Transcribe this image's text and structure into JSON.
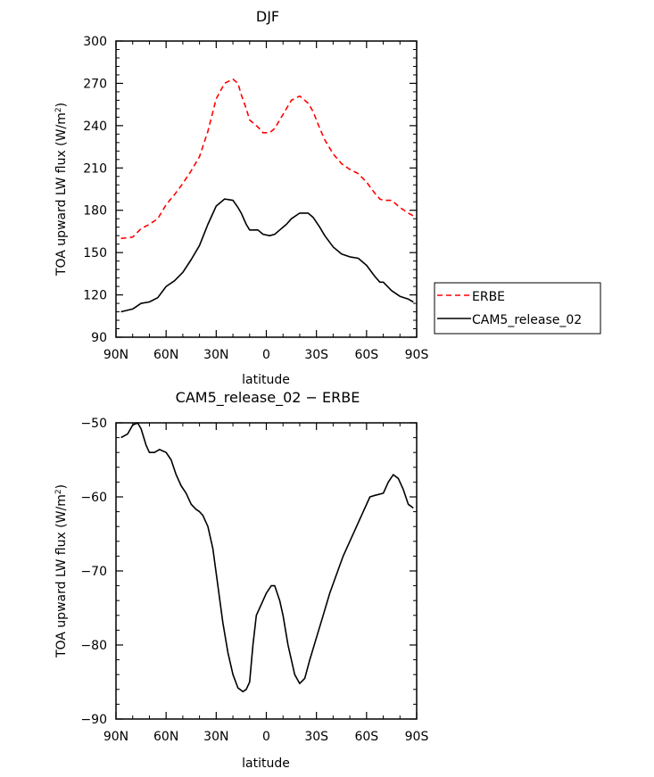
{
  "chart_data": [
    {
      "type": "line",
      "title": "DJF",
      "xlabel": "latitude",
      "ylabel": "TOA upward LW flux (W/m",
      "ylabel_sup": "2",
      "ylabel_close": ")",
      "xlim": [
        -90,
        90
      ],
      "ylim": [
        90,
        300
      ],
      "x_ticks": [
        -90,
        -60,
        -30,
        0,
        30,
        60,
        90
      ],
      "x_tick_labels": [
        "90N",
        "60N",
        "30N",
        "0",
        "30S",
        "60S",
        "90S"
      ],
      "y_ticks": [
        90,
        120,
        150,
        180,
        210,
        240,
        270,
        300
      ],
      "y_tick_labels": [
        "90",
        "120",
        "150",
        "180",
        "210",
        "240",
        "270",
        "300"
      ],
      "grid": false,
      "legend_position": "right",
      "x": [
        -87,
        -80,
        -75,
        -70,
        -65,
        -60,
        -55,
        -50,
        -45,
        -40,
        -35,
        -30,
        -25,
        -20,
        -17,
        -15,
        -12,
        -10,
        -5,
        -2,
        2,
        5,
        8,
        12,
        15,
        20,
        25,
        28,
        32,
        35,
        40,
        45,
        50,
        55,
        60,
        65,
        68,
        70,
        75,
        80,
        85,
        88
      ],
      "series": [
        {
          "name": "ERBE",
          "color": "#ff0000",
          "dash": "dashed",
          "values": [
            160,
            161,
            167,
            170,
            174,
            184,
            191,
            199,
            208,
            218,
            236,
            259,
            270,
            273,
            270,
            262,
            252,
            244,
            239,
            235,
            235,
            238,
            244,
            252,
            258,
            261,
            256,
            250,
            238,
            230,
            220,
            213,
            209,
            206,
            200,
            192,
            188,
            187,
            187,
            182,
            178,
            176
          ],
          "x_override": null
        },
        {
          "name": "CAM5_release_02",
          "color": "#000000",
          "dash": "solid",
          "values": [
            108,
            110,
            114,
            115,
            118,
            126,
            130,
            136,
            145,
            155,
            170,
            183,
            188,
            187,
            182,
            178,
            170,
            166,
            166,
            163,
            162,
            163,
            166,
            170,
            174,
            178,
            178,
            175,
            168,
            162,
            154,
            149,
            147,
            146,
            141,
            133,
            129,
            129,
            123,
            119,
            117,
            115
          ]
        }
      ]
    },
    {
      "type": "line",
      "title": "CAM5_release_02 − ERBE",
      "xlabel": "latitude",
      "ylabel": "TOA upward LW flux (W/m",
      "ylabel_sup": "2",
      "ylabel_close": ")",
      "xlim": [
        -90,
        90
      ],
      "ylim": [
        -90,
        -50
      ],
      "x_ticks": [
        -90,
        -60,
        -30,
        0,
        30,
        60,
        90
      ],
      "x_tick_labels": [
        "90N",
        "60N",
        "30N",
        "0",
        "30S",
        "60S",
        "90S"
      ],
      "y_ticks": [
        -90,
        -80,
        -70,
        -60,
        -50
      ],
      "y_tick_labels": [
        "−90",
        "−80",
        "−70",
        "−60",
        "−50"
      ],
      "grid": false,
      "legend_position": "none",
      "x": [
        -87,
        -83,
        -80,
        -77,
        -75,
        -72,
        -70,
        -67,
        -64,
        -60,
        -57,
        -54,
        -51,
        -48,
        -45,
        -42,
        -40,
        -38,
        -35,
        -32,
        -29,
        -26,
        -23,
        -20,
        -17,
        -14,
        -12,
        -10,
        -8,
        -6,
        -3,
        0,
        3,
        5,
        8,
        10,
        13,
        17,
        20,
        23,
        26,
        30,
        34,
        38,
        42,
        46,
        50,
        54,
        58,
        62,
        65,
        70,
        73,
        76,
        79,
        82,
        85,
        88
      ],
      "series": [
        {
          "name": "",
          "color": "#000000",
          "dash": "solid",
          "values": [
            -52,
            -51.5,
            -50.3,
            -50,
            -50.8,
            -53,
            -54,
            -54,
            -53.6,
            -54,
            -55,
            -57,
            -58.5,
            -59.5,
            -61,
            -61.7,
            -62,
            -62.5,
            -64,
            -67,
            -72,
            -77,
            -81,
            -84,
            -85.8,
            -86.3,
            -86,
            -85,
            -80,
            -76,
            -74.5,
            -73,
            -72,
            -72,
            -74,
            -76,
            -80,
            -84,
            -85.2,
            -84.5,
            -82,
            -79,
            -76,
            -73,
            -70.5,
            -68,
            -66,
            -64,
            -62,
            -60,
            -59.8,
            -59.5,
            -58,
            -57,
            -57.5,
            -59,
            -61,
            -61.5
          ]
        }
      ]
    }
  ]
}
